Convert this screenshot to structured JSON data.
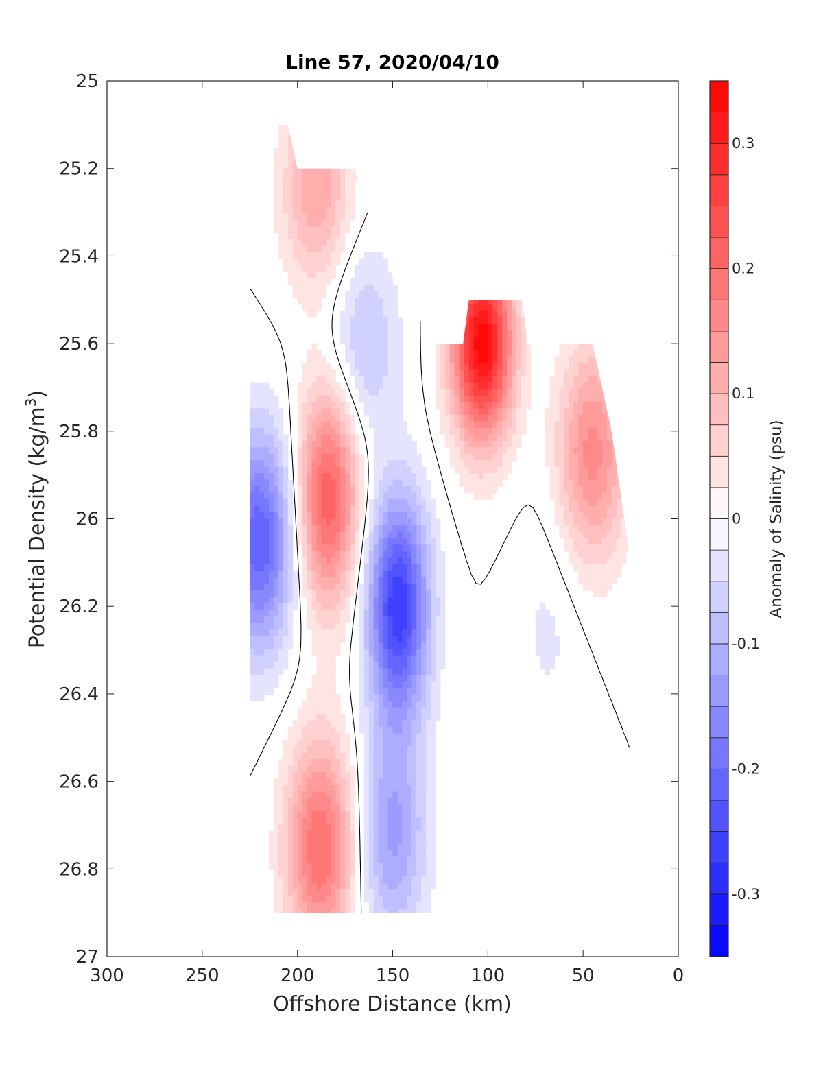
{
  "chart_data": {
    "type": "heatmap",
    "title": "Line 57, 2020/04/10",
    "xlabel": "Offshore Distance (km)",
    "ylabel_main": "Potential Density (kg/m",
    "ylabel_sup": "3",
    "ylabel_close": ")",
    "xlim": [
      300,
      0
    ],
    "ylim": [
      27,
      25
    ],
    "x_reversed": true,
    "y_reversed": true,
    "xticks": [
      300,
      250,
      200,
      150,
      100,
      50,
      0
    ],
    "yticks": [
      25,
      25.2,
      25.4,
      25.6,
      25.8,
      26,
      26.2,
      26.4,
      26.6,
      26.8,
      27
    ],
    "xtick_labels": [
      "300",
      "250",
      "200",
      "150",
      "100",
      "50",
      "0"
    ],
    "ytick_labels": [
      "25",
      "25.2",
      "25.4",
      "25.6",
      "25.8",
      "26",
      "26.2",
      "26.4",
      "26.6",
      "26.8",
      "27"
    ],
    "grid": false,
    "contour_interval": 0.025,
    "zero_contour_color": "#000000",
    "colorbar": {
      "label": "Anomaly of Salinity (psu)",
      "range": [
        -0.35,
        0.35
      ],
      "levels": 28,
      "ticks": [
        -0.3,
        -0.2,
        -0.1,
        0,
        0.1,
        0.2,
        0.3
      ],
      "tick_labels": [
        "-0.3",
        "-0.2",
        "-0.1",
        "0",
        "0.1",
        "0.2",
        "0.3"
      ],
      "min_color": "#0000ff",
      "mid_color": "#ffffff",
      "max_color": "#ff0000"
    },
    "features": [
      {
        "name": "deep-blue-core",
        "x": 147,
        "y": 26.2,
        "value": -0.27
      },
      {
        "name": "blue-left-edge",
        "x": 220,
        "y": 26.05,
        "value": -0.22
      },
      {
        "name": "blue-upper-tongue",
        "x": 165,
        "y": 25.6,
        "value": -0.08
      },
      {
        "name": "blue-lower-lobe",
        "x": 150,
        "y": 26.72,
        "value": -0.13
      },
      {
        "name": "red-deep-lobe",
        "x": 188,
        "y": 26.75,
        "value": 0.2
      },
      {
        "name": "red-middle-core",
        "x": 184,
        "y": 25.95,
        "value": 0.22
      },
      {
        "name": "red-upper-right-core",
        "x": 103,
        "y": 25.6,
        "value": 0.34
      },
      {
        "name": "red-right-edge",
        "x": 45,
        "y": 25.85,
        "value": 0.16
      },
      {
        "name": "blue-small-right",
        "x": 68,
        "y": 26.25,
        "value": -0.03
      },
      {
        "name": "pink-upper-left",
        "x": 190,
        "y": 25.25,
        "value": 0.12
      }
    ],
    "data_mask": [
      [
        225,
        25.1
      ],
      [
        205,
        25.1
      ],
      [
        200,
        25.2
      ],
      [
        170,
        25.2
      ],
      [
        164,
        25.3
      ],
      [
        158,
        25.3
      ],
      [
        150,
        25.45
      ],
      [
        135,
        25.55
      ],
      [
        135,
        25.6
      ],
      [
        113,
        25.6
      ],
      [
        110,
        25.5
      ],
      [
        82,
        25.5
      ],
      [
        79,
        25.6
      ],
      [
        45,
        25.6
      ],
      [
        35,
        25.8
      ],
      [
        25,
        26.1
      ],
      [
        25,
        26.5
      ],
      [
        35,
        26.9
      ],
      [
        225,
        26.9
      ]
    ]
  }
}
